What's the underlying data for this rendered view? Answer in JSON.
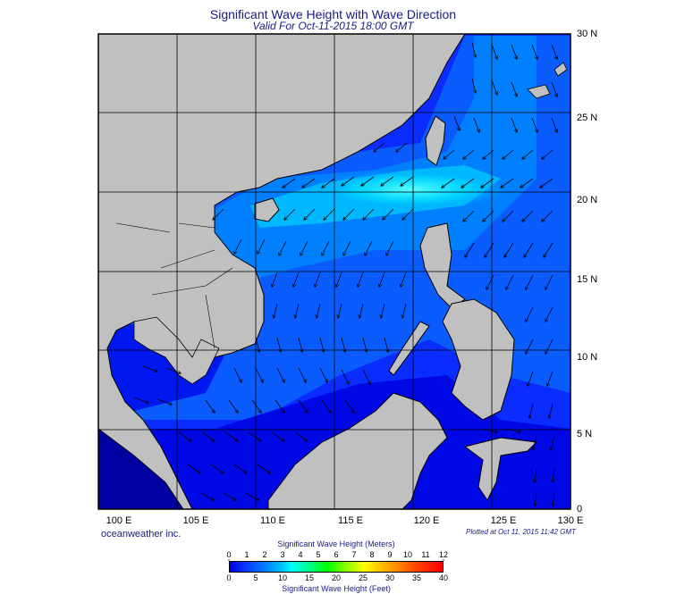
{
  "title": "Significant Wave Height with Wave Direction",
  "subtitle": "Valid For Oct-11-2015 18:00 GMT",
  "lat_labels": [
    "30 N",
    "25 N",
    "20 N",
    "15 N",
    "10 N",
    "5 N",
    "0"
  ],
  "lon_labels": [
    "100 E",
    "105 E",
    "110 E",
    "115 E",
    "120 E",
    "125 E",
    "130 E"
  ],
  "credit": "oceanweather inc.",
  "plotted": "Plotted at Oct 11, 2015 11:42 GMT",
  "colorbar": {
    "title_meters": "Significant Wave Height (Meters)",
    "title_feet": "Significant Wave Height (Feet)",
    "meters_ticks": [
      "0",
      "1",
      "2",
      "3",
      "4",
      "5",
      "6",
      "7",
      "8",
      "9",
      "10",
      "11",
      "12"
    ],
    "feet_ticks": [
      "0",
      "5",
      "10",
      "15",
      "20",
      "25",
      "30",
      "35",
      "40"
    ]
  },
  "colors": {
    "land": "#c0c0c0",
    "sea_low": "#0000e6",
    "sea_mid": "#0a3cff",
    "sea_high": "#00e0ff",
    "grid": "#000000",
    "text": "#1a1a80"
  }
}
